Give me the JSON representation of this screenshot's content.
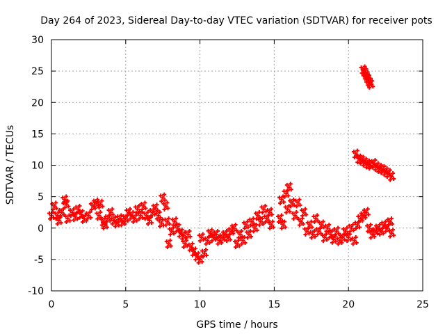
{
  "chart_data": {
    "type": "scatter",
    "title": "Day 264 of 2023, Sidereal Day-to-day VTEC variation (SDTVAR) for receiver pots",
    "xlabel": "GPS time / hours",
    "ylabel": "SDTVAR / TECUs",
    "xlim": [
      0,
      25
    ],
    "ylim": [
      -10,
      30
    ],
    "xticks": [
      0,
      5,
      10,
      15,
      20,
      25
    ],
    "yticks": [
      -10,
      -5,
      0,
      5,
      10,
      15,
      20,
      25,
      30
    ],
    "grid": true,
    "marker": "plus",
    "color": "#ff0000",
    "series": [
      {
        "name": "SDTVAR",
        "points": [
          [
            0.0,
            2.0
          ],
          [
            0.2,
            3.5
          ],
          [
            0.4,
            2.0
          ],
          [
            0.5,
            1.2
          ],
          [
            0.7,
            2.5
          ],
          [
            0.9,
            4.5
          ],
          [
            1.0,
            3.8
          ],
          [
            1.1,
            1.5
          ],
          [
            1.4,
            2.5
          ],
          [
            1.6,
            1.8
          ],
          [
            1.8,
            3.0
          ],
          [
            2.0,
            2.2
          ],
          [
            2.2,
            1.5
          ],
          [
            2.5,
            2.0
          ],
          [
            2.8,
            3.5
          ],
          [
            3.0,
            4.0
          ],
          [
            3.2,
            2.0
          ],
          [
            3.3,
            3.8
          ],
          [
            3.5,
            1.0
          ],
          [
            3.6,
            0.5
          ],
          [
            3.8,
            1.5
          ],
          [
            4.0,
            2.5
          ],
          [
            4.2,
            1.2
          ],
          [
            4.4,
            0.8
          ],
          [
            4.6,
            1.5
          ],
          [
            4.8,
            1.0
          ],
          [
            5.0,
            1.5
          ],
          [
            5.2,
            2.5
          ],
          [
            5.4,
            2.0
          ],
          [
            5.6,
            1.5
          ],
          [
            5.8,
            3.0
          ],
          [
            6.0,
            2.0
          ],
          [
            6.2,
            3.5
          ],
          [
            6.4,
            2.0
          ],
          [
            6.6,
            1.2
          ],
          [
            6.8,
            2.5
          ],
          [
            7.0,
            3.2
          ],
          [
            7.2,
            2.0
          ],
          [
            7.4,
            0.8
          ],
          [
            7.5,
            4.8
          ],
          [
            7.7,
            3.5
          ],
          [
            7.8,
            1.0
          ],
          [
            7.9,
            -2.5
          ],
          [
            8.1,
            -0.5
          ],
          [
            8.3,
            1.0
          ],
          [
            8.5,
            0.0
          ],
          [
            8.7,
            -0.8
          ],
          [
            8.9,
            -1.2
          ],
          [
            9.0,
            -2.5
          ],
          [
            9.2,
            -1.0
          ],
          [
            9.4,
            -3.0
          ],
          [
            9.6,
            -3.8
          ],
          [
            9.8,
            -4.5
          ],
          [
            10.0,
            -5.0
          ],
          [
            10.1,
            -1.5
          ],
          [
            10.3,
            -4.0
          ],
          [
            10.5,
            -2.0
          ],
          [
            10.7,
            -0.8
          ],
          [
            10.9,
            -1.5
          ],
          [
            11.1,
            -1.0
          ],
          [
            11.3,
            -2.0
          ],
          [
            11.5,
            -1.5
          ],
          [
            11.7,
            -1.0
          ],
          [
            11.9,
            -1.5
          ],
          [
            12.1,
            -0.5
          ],
          [
            12.3,
            0.0
          ],
          [
            12.5,
            -2.5
          ],
          [
            12.7,
            -1.0
          ],
          [
            12.9,
            -2.0
          ],
          [
            13.1,
            0.5
          ],
          [
            13.3,
            -1.0
          ],
          [
            13.5,
            1.0
          ],
          [
            13.7,
            0.0
          ],
          [
            13.9,
            2.0
          ],
          [
            14.1,
            1.0
          ],
          [
            14.3,
            3.0
          ],
          [
            14.5,
            1.5
          ],
          [
            14.7,
            2.5
          ],
          [
            14.8,
            0.5
          ],
          [
            15.4,
            1.5
          ],
          [
            15.5,
            4.5
          ],
          [
            15.6,
            0.5
          ],
          [
            15.8,
            5.5
          ],
          [
            15.9,
            3.0
          ],
          [
            16.0,
            6.5
          ],
          [
            16.2,
            4.0
          ],
          [
            16.4,
            2.0
          ],
          [
            16.6,
            4.0
          ],
          [
            16.8,
            1.0
          ],
          [
            17.0,
            2.5
          ],
          [
            17.2,
            -0.5
          ],
          [
            17.4,
            0.5
          ],
          [
            17.6,
            -1.0
          ],
          [
            17.8,
            1.5
          ],
          [
            18.0,
            -0.5
          ],
          [
            18.2,
            0.5
          ],
          [
            18.4,
            -1.5
          ],
          [
            18.6,
            0.0
          ],
          [
            18.8,
            -1.0
          ],
          [
            19.0,
            -1.8
          ],
          [
            19.2,
            -0.5
          ],
          [
            19.4,
            -2.0
          ],
          [
            19.6,
            -1.5
          ],
          [
            19.8,
            -0.5
          ],
          [
            20.0,
            -1.5
          ],
          [
            20.2,
            0.0
          ],
          [
            20.4,
            -2.0
          ],
          [
            20.6,
            0.5
          ],
          [
            20.8,
            1.5
          ],
          [
            21.0,
            2.0
          ],
          [
            21.2,
            2.5
          ],
          [
            21.4,
            0.0
          ],
          [
            21.6,
            -1.0
          ],
          [
            21.8,
            -0.5
          ],
          [
            22.0,
            0.0
          ],
          [
            22.2,
            -0.5
          ],
          [
            22.4,
            0.5
          ],
          [
            22.6,
            0.0
          ],
          [
            22.8,
            1.0
          ],
          [
            22.9,
            -0.8
          ],
          [
            20.5,
            11.8
          ],
          [
            20.7,
            11.0
          ],
          [
            20.9,
            10.8
          ],
          [
            21.1,
            10.5
          ],
          [
            21.3,
            10.2
          ],
          [
            21.5,
            10.0
          ],
          [
            21.7,
            10.3
          ],
          [
            21.9,
            9.8
          ],
          [
            22.1,
            9.5
          ],
          [
            22.3,
            9.3
          ],
          [
            22.5,
            9.0
          ],
          [
            22.7,
            8.7
          ],
          [
            22.9,
            8.2
          ],
          [
            21.0,
            25.2
          ],
          [
            21.1,
            24.8
          ],
          [
            21.2,
            24.3
          ],
          [
            21.3,
            23.8
          ],
          [
            21.4,
            23.3
          ],
          [
            21.5,
            22.9
          ]
        ]
      }
    ]
  }
}
